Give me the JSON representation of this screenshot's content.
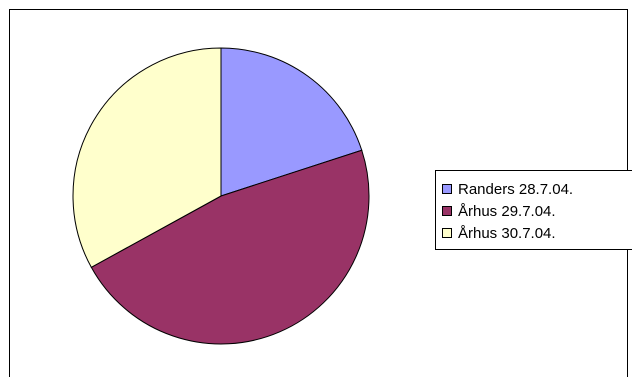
{
  "chart_data": {
    "type": "pie",
    "title": "",
    "categories": [
      "Randers 28.7.04.",
      "Århus 29.7.04.",
      "Århus 30.7.04."
    ],
    "values": [
      20,
      47,
      33
    ],
    "colors": [
      "#9999ff",
      "#993366",
      "#ffffcc"
    ],
    "start_angle_deg": 0,
    "direction": "clockwise",
    "legend_position": "right"
  }
}
